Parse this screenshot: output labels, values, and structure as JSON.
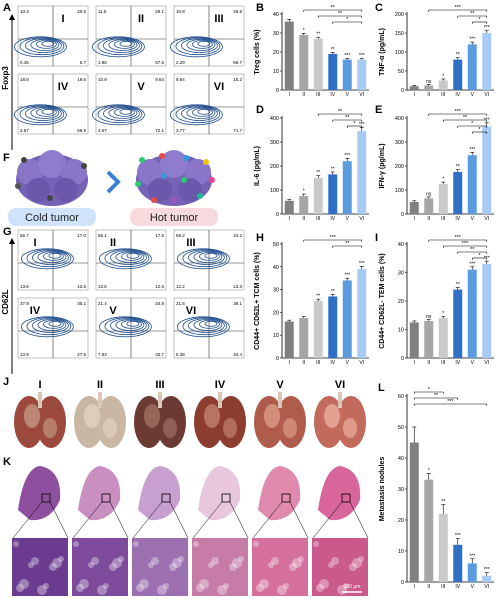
{
  "panels": {
    "A": "A",
    "B": "B",
    "C": "C",
    "D": "D",
    "E": "E",
    "F": "F",
    "G": "G",
    "H": "H",
    "I": "I",
    "J": "J",
    "K": "K",
    "L": "L"
  },
  "groups": [
    "I",
    "II",
    "III",
    "IV",
    "V",
    "VI"
  ],
  "flowA": {
    "y_label": "Foxp3",
    "x_label": "CD25",
    "plots": [
      {
        "name": "I",
        "q": [
          "10.3",
          "20.5",
          "0.45",
          "5.7"
        ]
      },
      {
        "name": "II",
        "q": [
          "11.5",
          "29.1",
          "1.96",
          "57.6"
        ]
      },
      {
        "name": "III",
        "q": [
          "10.8",
          "26.8",
          "2.29",
          "66.7"
        ]
      },
      {
        "name": "IV",
        "q": [
          "18.8",
          "19.6",
          "2.57",
          "66.9"
        ]
      },
      {
        "name": "V",
        "q": [
          "10.9",
          "9.64",
          "3.67",
          "72.1"
        ]
      },
      {
        "name": "VI",
        "q": [
          "9.64",
          "15.2",
          "3.77",
          "71.7"
        ]
      }
    ]
  },
  "flowG": {
    "y_label": "CD62L",
    "x_label": "CD44",
    "plots": [
      {
        "name": "I",
        "q": [
          "56.7",
          "17.0",
          "13.6",
          "12.6"
        ]
      },
      {
        "name": "II",
        "q": [
          "56.1",
          "17.5",
          "13.6",
          "12.6"
        ]
      },
      {
        "name": "III",
        "q": [
          "58.2",
          "24.2",
          "12.2",
          "13.3"
        ]
      },
      {
        "name": "IV",
        "q": [
          "37.9",
          "30.1",
          "13.9",
          "27.6"
        ]
      },
      {
        "name": "V",
        "q": [
          "21.4",
          "34.9",
          "7.63",
          "32.7"
        ]
      },
      {
        "name": "VI",
        "q": [
          "21.6",
          "39.1",
          "5.38",
          "34.4"
        ]
      }
    ]
  },
  "cold_tumor": "Cold tumor",
  "hot_tumor": "Hot tumor",
  "lung_labels": [
    "I",
    "II",
    "III",
    "IV",
    "V",
    "VI"
  ],
  "scale_bar": "100 μm",
  "colors": {
    "bar_grays": [
      "#808080",
      "#a6a6a6",
      "#c9c9c9",
      "#2f6fc6",
      "#5b9be0",
      "#a7cbf4"
    ],
    "flow_blue": "#1f4e8c",
    "cold_bg": "#cfe3fb",
    "hot_bg": "#f8d9de",
    "he_pink": "#d46a97",
    "he_purple": "#6a3b8f"
  },
  "chart_data": [
    {
      "panel": "B",
      "type": "bar",
      "categories": [
        "I",
        "II",
        "III",
        "IV",
        "V",
        "VI"
      ],
      "values": [
        36,
        29,
        27,
        19,
        16,
        16
      ],
      "errors": [
        1.2,
        0.8,
        0.8,
        0.8,
        0.6,
        0.7
      ],
      "stars": [
        "",
        "*",
        "**",
        "**",
        "***",
        "***"
      ],
      "brackets": [
        {
          "from": 1,
          "to": 5,
          "label": "**"
        },
        {
          "from": 2,
          "to": 5,
          "label": "**"
        },
        {
          "from": 3,
          "to": 5,
          "label": "*"
        }
      ],
      "ylabel": "Treg cells (%)",
      "ylim": [
        0,
        40
      ],
      "yticks": [
        0,
        10,
        20,
        30,
        40
      ]
    },
    {
      "panel": "C",
      "type": "bar",
      "categories": [
        "I",
        "II",
        "III",
        "IV",
        "V",
        "VI"
      ],
      "values": [
        10,
        12,
        25,
        80,
        120,
        150
      ],
      "errors": [
        2,
        3,
        4,
        5,
        6,
        6
      ],
      "stars": [
        "",
        "ns",
        "*",
        "**",
        "***",
        "***"
      ],
      "brackets": [
        {
          "from": 1,
          "to": 5,
          "label": "***"
        },
        {
          "from": 3,
          "to": 5,
          "label": "**"
        },
        {
          "from": 4,
          "to": 5,
          "label": "*"
        }
      ],
      "ylabel": "TNF-α (pg/mL)",
      "ylim": [
        0,
        200
      ],
      "yticks": [
        0,
        50,
        100,
        150,
        200
      ]
    },
    {
      "panel": "D",
      "type": "bar",
      "categories": [
        "I",
        "II",
        "III",
        "IV",
        "V",
        "VI"
      ],
      "values": [
        55,
        75,
        150,
        165,
        220,
        345
      ],
      "errors": [
        6,
        8,
        10,
        10,
        12,
        15
      ],
      "stars": [
        "",
        "*",
        "**",
        "**",
        "***",
        "***"
      ],
      "brackets": [
        {
          "from": 2,
          "to": 5,
          "label": "**"
        },
        {
          "from": 3,
          "to": 5,
          "label": "**"
        },
        {
          "from": 4,
          "to": 5,
          "label": "*"
        }
      ],
      "ylabel": "IL-6 (pg/mL)",
      "ylim": [
        0,
        400
      ],
      "yticks": [
        0,
        100,
        200,
        300,
        400
      ]
    },
    {
      "panel": "E",
      "type": "bar",
      "categories": [
        "I",
        "II",
        "III",
        "IV",
        "V",
        "VI"
      ],
      "values": [
        50,
        65,
        125,
        175,
        245,
        365
      ],
      "errors": [
        5,
        6,
        8,
        10,
        12,
        15
      ],
      "stars": [
        "",
        "ns",
        "*",
        "**",
        "***",
        "***"
      ],
      "brackets": [
        {
          "from": 1,
          "to": 5,
          "label": "***"
        },
        {
          "from": 2,
          "to": 5,
          "label": "**"
        },
        {
          "from": 3,
          "to": 5,
          "label": "*"
        },
        {
          "from": 4,
          "to": 5,
          "label": "*"
        }
      ],
      "ylabel": "IFN-γ (pg/mL)",
      "ylim": [
        0,
        400
      ],
      "yticks": [
        0,
        100,
        200,
        300,
        400
      ]
    },
    {
      "panel": "H",
      "type": "bar",
      "categories": [
        "I",
        "II",
        "III",
        "IV",
        "V",
        "VI"
      ],
      "values": [
        16,
        17.5,
        25,
        27,
        34,
        39
      ],
      "errors": [
        0.6,
        0.6,
        0.8,
        0.9,
        1.0,
        1.2
      ],
      "stars": [
        "",
        "",
        "**",
        "**",
        "***",
        "***"
      ],
      "brackets": [
        {
          "from": 1,
          "to": 5,
          "label": "***"
        },
        {
          "from": 3,
          "to": 5,
          "label": "**"
        }
      ],
      "ylabel": "CD44+ CD62L+ TCM cells (%)",
      "ylim": [
        0,
        50
      ],
      "yticks": [
        0,
        10,
        20,
        30,
        40,
        50
      ]
    },
    {
      "panel": "I",
      "type": "bar",
      "categories": [
        "I",
        "II",
        "III",
        "IV",
        "V",
        "VI"
      ],
      "values": [
        12.5,
        13,
        14,
        24,
        31,
        33
      ],
      "errors": [
        0.5,
        0.5,
        0.5,
        0.8,
        1.0,
        1.0
      ],
      "stars": [
        "",
        "ns",
        "*",
        "**",
        "***",
        "***"
      ],
      "brackets": [
        {
          "from": 1,
          "to": 5,
          "label": "***"
        },
        {
          "from": 2,
          "to": 5,
          "label": "***"
        },
        {
          "from": 3,
          "to": 5,
          "label": "**"
        },
        {
          "from": 4,
          "to": 5,
          "label": "*"
        }
      ],
      "ylabel": "CD44+ CD62L- TEM cells (%)",
      "ylim": [
        0,
        40
      ],
      "yticks": [
        0,
        10,
        20,
        30,
        40
      ]
    },
    {
      "panel": "L",
      "type": "bar",
      "categories": [
        "I",
        "II",
        "III",
        "IV",
        "V",
        "VI"
      ],
      "values": [
        45,
        33,
        22,
        12,
        6,
        2
      ],
      "errors": [
        5,
        2,
        3,
        2,
        1.5,
        1
      ],
      "stars": [
        "",
        "*",
        "**",
        "***",
        "***",
        "***"
      ],
      "brackets": [
        {
          "from": 0,
          "to": 2,
          "label": "*"
        },
        {
          "from": 0,
          "to": 3,
          "label": "**"
        },
        {
          "from": 0,
          "to": 5,
          "label": "***"
        }
      ],
      "ylabel": "Metastasis nodules",
      "ylim": [
        0,
        60
      ],
      "yticks": [
        0,
        10,
        20,
        30,
        40,
        50,
        60
      ]
    }
  ]
}
